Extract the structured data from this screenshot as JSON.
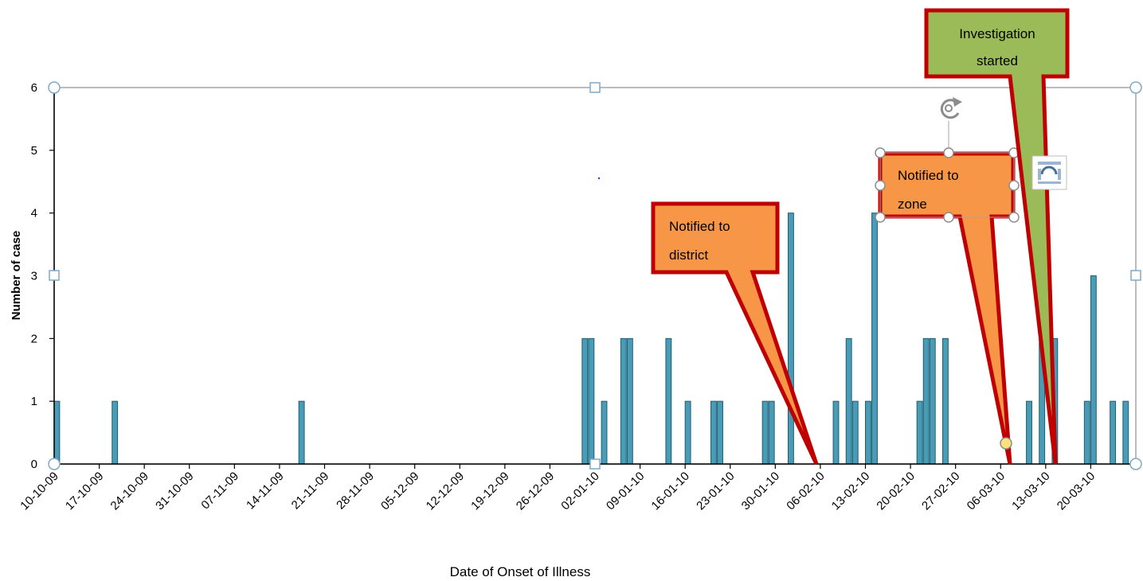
{
  "chart_data": {
    "type": "bar",
    "xlabel": "Date of Onset of Illness",
    "ylabel": "Number of case",
    "ylim": [
      0,
      6
    ],
    "yticks": [
      0,
      1,
      2,
      3,
      4,
      5,
      6
    ],
    "x_range": [
      "2009-10-10",
      "2010-03-27"
    ],
    "x_tick_labels": [
      "10-10-09",
      "17-10-09",
      "24-10-09",
      "31-10-09",
      "07-11-09",
      "14-11-09",
      "21-11-09",
      "28-11-09",
      "05-12-09",
      "12-12-09",
      "19-12-09",
      "26-12-09",
      "02-01-10",
      "09-01-10",
      "16-01-10",
      "23-01-10",
      "30-01-10",
      "06-02-10",
      "13-02-10",
      "20-02-10",
      "27-02-10",
      "06-03-10",
      "13-03-10",
      "20-03-10"
    ],
    "bar_color": "#4A9BB5",
    "bar_edge_color": "#1E5F73",
    "grid": false,
    "data": [
      {
        "date": "10-10-09",
        "value": 1
      },
      {
        "date": "19-10-09",
        "value": 1
      },
      {
        "date": "17-11-09",
        "value": 1
      },
      {
        "date": "31-12-09",
        "value": 2
      },
      {
        "date": "01-01-10",
        "value": 2
      },
      {
        "date": "03-01-10",
        "value": 1
      },
      {
        "date": "06-01-10",
        "value": 2
      },
      {
        "date": "07-01-10",
        "value": 2
      },
      {
        "date": "13-01-10",
        "value": 2
      },
      {
        "date": "16-01-10",
        "value": 1
      },
      {
        "date": "20-01-10",
        "value": 1
      },
      {
        "date": "21-01-10",
        "value": 1
      },
      {
        "date": "28-01-10",
        "value": 1
      },
      {
        "date": "29-01-10",
        "value": 1
      },
      {
        "date": "01-02-10",
        "value": 4
      },
      {
        "date": "08-02-10",
        "value": 1
      },
      {
        "date": "10-02-10",
        "value": 2
      },
      {
        "date": "11-02-10",
        "value": 1
      },
      {
        "date": "13-02-10",
        "value": 1
      },
      {
        "date": "14-02-10",
        "value": 4
      },
      {
        "date": "21-02-10",
        "value": 1
      },
      {
        "date": "22-02-10",
        "value": 2
      },
      {
        "date": "23-02-10",
        "value": 2
      },
      {
        "date": "25-02-10",
        "value": 2
      },
      {
        "date": "10-03-10",
        "value": 1
      },
      {
        "date": "12-03-10",
        "value": 5
      },
      {
        "date": "14-03-10",
        "value": 2
      },
      {
        "date": "19-03-10",
        "value": 1
      },
      {
        "date": "20-03-10",
        "value": 3
      },
      {
        "date": "23-03-10",
        "value": 1
      },
      {
        "date": "25-03-10",
        "value": 1
      }
    ],
    "annotations": [
      {
        "id": "district",
        "lines": [
          "Notified to",
          "district"
        ],
        "points_to": "05-02-10",
        "fill": "#F79646",
        "border": "#C00000"
      },
      {
        "id": "zone",
        "lines": [
          "Notified to",
          "zone"
        ],
        "points_to": "07-03-10",
        "fill": "#F79646",
        "border": "#C00000",
        "selected": true
      },
      {
        "id": "investigation",
        "lines": [
          "Investigation",
          "started"
        ],
        "points_to": "13-03-10",
        "fill": "#9BBB59",
        "border": "#C00000"
      }
    ]
  }
}
